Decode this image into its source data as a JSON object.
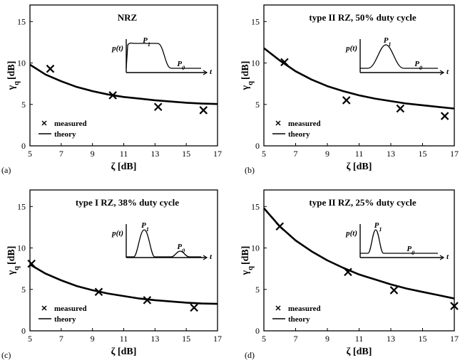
{
  "chart_data": [
    {
      "type": "line",
      "panel_label": "(a)",
      "title": "NRZ",
      "xlabel": "ζ [dB]",
      "ylabel": "γq [dB]",
      "xlim": [
        5,
        17
      ],
      "ylim": [
        0,
        17
      ],
      "xticks": [
        5,
        7,
        9,
        11,
        13,
        15,
        17
      ],
      "yticks": [
        0,
        5,
        10,
        15
      ],
      "legend": {
        "placement": "bottom-left",
        "entries": [
          "measured",
          "theory"
        ]
      },
      "series": [
        {
          "name": "measured",
          "style": "scatter",
          "x": [
            6.3,
            10.3,
            13.2,
            16.1
          ],
          "y": [
            9.3,
            6.1,
            4.7,
            4.3
          ]
        },
        {
          "name": "theory",
          "style": "line",
          "x": [
            5,
            6,
            7,
            8,
            9,
            10,
            11,
            12,
            13,
            14,
            15,
            16,
            17
          ],
          "y": [
            9.8,
            8.6,
            7.8,
            7.1,
            6.6,
            6.2,
            5.9,
            5.7,
            5.5,
            5.35,
            5.2,
            5.1,
            5.05
          ]
        }
      ],
      "inset": {
        "label_p": "p(t)",
        "label_p1": "P1",
        "label_p0": "P0",
        "label_t": "t",
        "pulse": "nrz"
      }
    },
    {
      "type": "line",
      "panel_label": "(b)",
      "title": "type II RZ, 50% duty cycle",
      "xlabel": "ζ [dB]",
      "ylabel": "γq [dB]",
      "xlim": [
        5,
        17
      ],
      "ylim": [
        0,
        17
      ],
      "xticks": [
        5,
        7,
        9,
        11,
        13,
        15,
        17
      ],
      "yticks": [
        0,
        5,
        10,
        15
      ],
      "legend": {
        "placement": "bottom-left",
        "entries": [
          "measured",
          "theory"
        ]
      },
      "series": [
        {
          "name": "measured",
          "style": "scatter",
          "x": [
            6.3,
            10.2,
            13.6,
            16.4
          ],
          "y": [
            10.1,
            5.5,
            4.5,
            3.6
          ]
        },
        {
          "name": "theory",
          "style": "line",
          "x": [
            5,
            6,
            7,
            8,
            9,
            10,
            11,
            12,
            13,
            14,
            15,
            16,
            17
          ],
          "y": [
            11.8,
            10.3,
            9.0,
            8.0,
            7.2,
            6.6,
            6.1,
            5.7,
            5.4,
            5.1,
            4.9,
            4.7,
            4.5
          ]
        }
      ],
      "inset": {
        "label_p": "p(t)",
        "label_p1": "P1",
        "label_p0": "P0",
        "label_t": "t",
        "pulse": "rz50"
      }
    },
    {
      "type": "line",
      "panel_label": "(c)",
      "title": "type I RZ, 38% duty cycle",
      "xlabel": "ζ [dB]",
      "ylabel": "γq [dB]",
      "xlim": [
        5,
        17
      ],
      "ylim": [
        0,
        17
      ],
      "xticks": [
        5,
        7,
        9,
        11,
        13,
        15,
        17
      ],
      "yticks": [
        0,
        5,
        10,
        15
      ],
      "legend": {
        "placement": "bottom-left",
        "entries": [
          "measured",
          "theory"
        ]
      },
      "series": [
        {
          "name": "measured",
          "style": "scatter",
          "x": [
            5.1,
            9.4,
            12.5,
            15.5
          ],
          "y": [
            8.1,
            4.7,
            3.7,
            2.8
          ]
        },
        {
          "name": "theory",
          "style": "line",
          "x": [
            5,
            6,
            7,
            8,
            9,
            10,
            11,
            12,
            13,
            14,
            15,
            16,
            17
          ],
          "y": [
            8.0,
            6.9,
            6.1,
            5.4,
            4.9,
            4.5,
            4.2,
            3.9,
            3.7,
            3.55,
            3.4,
            3.3,
            3.25
          ]
        }
      ],
      "inset": {
        "label_p": "p(t)",
        "label_p1": "P1",
        "label_p0": "P0",
        "label_t": "t",
        "pulse": "rz38"
      }
    },
    {
      "type": "line",
      "panel_label": "(d)",
      "title": "type II RZ, 25% duty cycle",
      "xlabel": "ζ [dB]",
      "ylabel": "γq [dB]",
      "xlim": [
        5,
        17
      ],
      "ylim": [
        0,
        17
      ],
      "xticks": [
        5,
        7,
        9,
        11,
        13,
        15,
        17
      ],
      "yticks": [
        0,
        5,
        10,
        15
      ],
      "legend": {
        "placement": "bottom-left",
        "entries": [
          "measured",
          "theory"
        ]
      },
      "series": [
        {
          "name": "measured",
          "style": "scatter",
          "x": [
            6.0,
            10.3,
            13.2,
            17.0
          ],
          "y": [
            12.6,
            7.1,
            4.9,
            3.0
          ]
        },
        {
          "name": "theory",
          "style": "line",
          "x": [
            5,
            6,
            7,
            8,
            9,
            10,
            11,
            12,
            13,
            14,
            15,
            16,
            17
          ],
          "y": [
            14.8,
            12.6,
            10.9,
            9.6,
            8.5,
            7.6,
            6.8,
            6.2,
            5.6,
            5.1,
            4.7,
            4.3,
            3.9
          ]
        }
      ],
      "inset": {
        "label_p": "p(t)",
        "label_p1": "P1",
        "label_p0": "P0",
        "label_t": "t",
        "pulse": "rz25"
      }
    }
  ]
}
